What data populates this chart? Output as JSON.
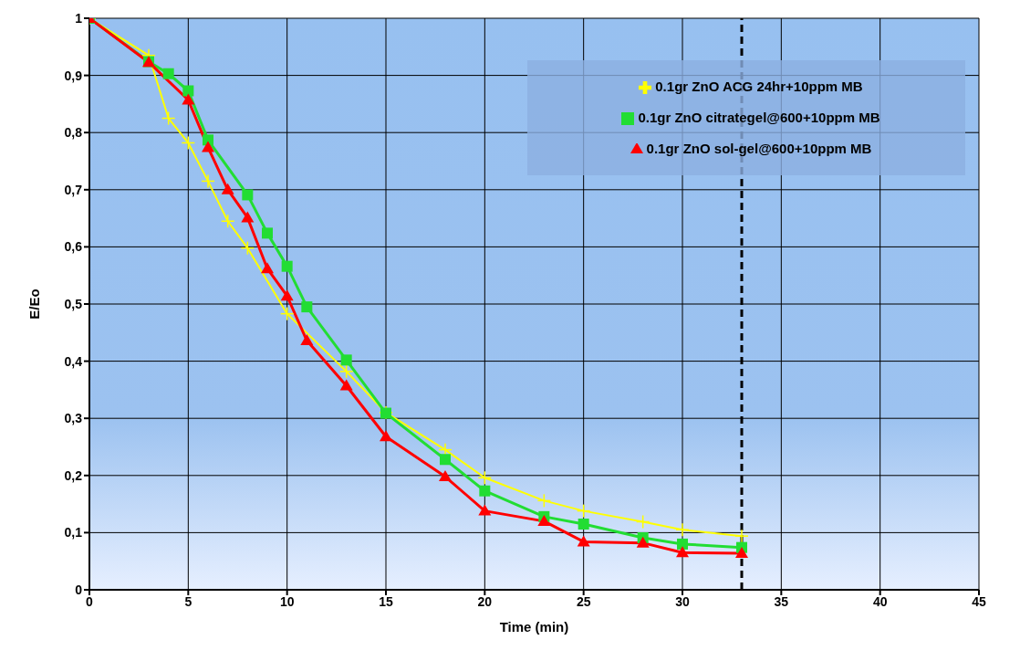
{
  "chart_data": {
    "type": "line",
    "xlabel": "Time (min)",
    "ylabel": "E/Eo",
    "xlim": [
      0,
      45
    ],
    "xticks": [
      0,
      5,
      10,
      15,
      20,
      25,
      30,
      35,
      40,
      45
    ],
    "ylim": [
      0,
      1
    ],
    "yticks": [
      0,
      {
        "value": 0.1,
        "label": "0,1"
      },
      {
        "value": 0.2,
        "label": "0,2"
      },
      {
        "value": 0.3,
        "label": "0,3"
      },
      {
        "value": 0.4,
        "label": "0,4"
      },
      {
        "value": 0.5,
        "label": "0,5"
      },
      {
        "value": 0.6,
        "label": "0,6"
      },
      {
        "value": 0.7,
        "label": "0,7"
      },
      {
        "value": 0.8,
        "label": "0,8"
      },
      {
        "value": 0.9,
        "label": "0,9"
      },
      1
    ],
    "grid": true,
    "legend": "top right",
    "ref_lines": [
      {
        "axis": "x",
        "value": 33,
        "color": "#000000",
        "line_style": "dashed"
      }
    ],
    "series": [
      {
        "name": "0.1gr ZnO ACG 24hr+10ppm MB",
        "color": "#ffff00",
        "marker": "cross",
        "x": [
          0,
          3,
          4,
          5,
          6,
          7,
          8,
          10,
          13,
          15,
          18,
          20,
          23,
          25,
          28,
          30,
          33
        ],
        "values": [
          1,
          0.935,
          0.825,
          0.782,
          0.715,
          0.645,
          0.598,
          0.483,
          0.382,
          0.31,
          0.245,
          0.196,
          0.156,
          0.138,
          0.119,
          0.105,
          0.094
        ]
      },
      {
        "name": "0.1gr ZnO citrategel@600+10ppm MB",
        "color": "#22dd33",
        "marker": "square",
        "x": [
          0,
          3,
          4,
          5,
          6,
          8,
          9,
          10,
          11,
          13,
          15,
          18,
          20,
          23,
          25,
          28,
          30,
          33
        ],
        "values": [
          1,
          0.924,
          0.903,
          0.873,
          0.787,
          0.691,
          0.624,
          0.566,
          0.495,
          0.402,
          0.309,
          0.228,
          0.173,
          0.128,
          0.115,
          0.091,
          0.08,
          0.074
        ]
      },
      {
        "name": "0.1gr ZnO sol-gel@600+10ppm MB",
        "color": "#ff0000",
        "marker": "triangle",
        "x": [
          0,
          3,
          5,
          6,
          7,
          8,
          9,
          10,
          11,
          13,
          15,
          18,
          20,
          23,
          25,
          28,
          30,
          33
        ],
        "values": [
          1,
          0.923,
          0.857,
          0.774,
          0.7,
          0.651,
          0.562,
          0.514,
          0.436,
          0.357,
          0.268,
          0.198,
          0.138,
          0.12,
          0.084,
          0.082,
          0.065,
          0.064
        ]
      }
    ]
  }
}
